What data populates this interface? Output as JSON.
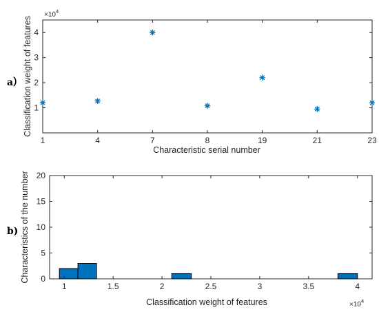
{
  "chart_data": [
    {
      "panel_label": "a）",
      "type": "scatter",
      "marker": "asterisk",
      "color": "#0072BD",
      "categories": [
        "1",
        "4",
        "7",
        "8",
        "19",
        "21",
        "23"
      ],
      "values": [
        12000,
        12700,
        40000,
        10800,
        22000,
        9500,
        12000
      ],
      "xlabel": "Characteristic serial number",
      "ylabel": "Classification weight of features",
      "ylim": [
        0,
        45000
      ],
      "yticks": [
        {
          "value": 10000,
          "label": "1"
        },
        {
          "value": 20000,
          "label": "2"
        },
        {
          "value": 30000,
          "label": "3"
        },
        {
          "value": 40000,
          "label": "4"
        }
      ],
      "y_exponent": {
        "base": "×10",
        "power": "4"
      },
      "grid": false
    },
    {
      "panel_label": "b)",
      "type": "bar",
      "color": "#0072BD",
      "edge_color": "#000000",
      "bins": [
        {
          "x0": 9500,
          "x1": 11400,
          "count": 2
        },
        {
          "x0": 11400,
          "x1": 13300,
          "count": 3
        },
        {
          "x0": 21000,
          "x1": 23000,
          "count": 1
        },
        {
          "x0": 38000,
          "x1": 40000,
          "count": 1
        }
      ],
      "xlabel": "Classification weight of features",
      "ylabel": "Characteristics of the number",
      "xlim": [
        8500,
        41500
      ],
      "ylim": [
        0,
        20
      ],
      "xticks": [
        {
          "value": 10000,
          "label": "1"
        },
        {
          "value": 15000,
          "label": "1.5"
        },
        {
          "value": 20000,
          "label": "2"
        },
        {
          "value": 25000,
          "label": "2.5"
        },
        {
          "value": 30000,
          "label": "3"
        },
        {
          "value": 35000,
          "label": "3.5"
        },
        {
          "value": 40000,
          "label": "4"
        }
      ],
      "yticks": [
        0,
        5,
        10,
        15,
        20
      ],
      "x_exponent": {
        "base": "×10",
        "power": "4"
      },
      "grid": false
    }
  ]
}
